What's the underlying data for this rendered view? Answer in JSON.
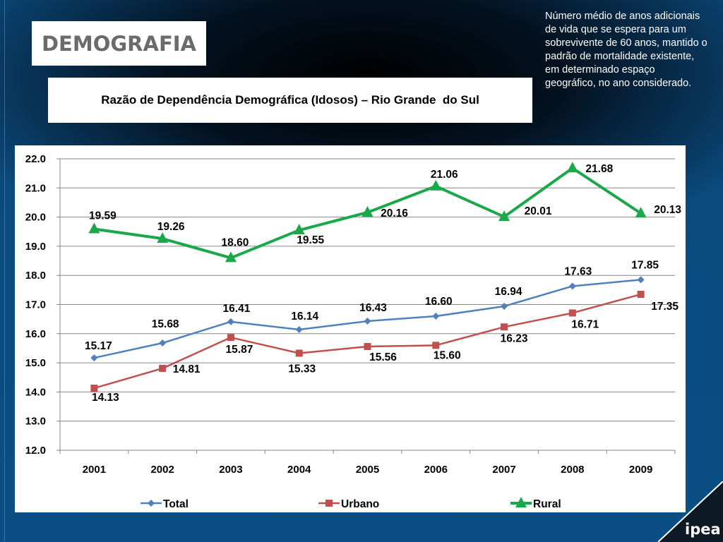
{
  "header": {
    "section_logo": "DEMOGRAFIA",
    "brand": "ipea"
  },
  "note": "Número médio de anos adicionais de vida que se espera para um sobrevivente de 60 anos, mantido o padrão de mortalidade existente, em determinado espaço geográfico, no ano considerado.",
  "colors": {
    "total": "#4f81bd",
    "urbano": "#c0504d",
    "rural": "#1aa84a",
    "grid": "#868686"
  },
  "chart_data": {
    "type": "line",
    "title": "Razão de Dependência Demográfica (Idosos) – Rio Grande  do Sul",
    "xlabel": "",
    "ylabel": "",
    "categories": [
      "2001",
      "2002",
      "2003",
      "2004",
      "2005",
      "2006",
      "2007",
      "2008",
      "2009"
    ],
    "ylim": [
      12.0,
      22.0
    ],
    "yticks": [
      "22.0",
      "21.0",
      "20.0",
      "19.0",
      "18.0",
      "17.0",
      "16.0",
      "15.0",
      "14.0",
      "13.0",
      "12.0"
    ],
    "grid": true,
    "legend": "bottom",
    "series": [
      {
        "name": "Total",
        "marker": "diamond",
        "values": [
          15.17,
          15.68,
          16.41,
          16.14,
          16.43,
          16.6,
          16.94,
          17.63,
          17.85
        ],
        "labels": [
          "15.17",
          "15.68",
          "16.41",
          "16.14",
          "16.43",
          "16.60",
          "16.94",
          "17.63",
          "17.85"
        ]
      },
      {
        "name": "Urbano",
        "marker": "square",
        "values": [
          14.13,
          14.81,
          15.87,
          15.33,
          15.56,
          15.6,
          16.23,
          16.71,
          17.35
        ],
        "labels": [
          "14.13",
          "14.81",
          "15.87",
          "15.33",
          "15.56",
          "15.60",
          "16.23",
          "16.71",
          "17.35"
        ]
      },
      {
        "name": "Rural",
        "marker": "triangle",
        "values": [
          19.59,
          19.26,
          18.6,
          19.55,
          20.16,
          21.06,
          20.01,
          21.68,
          20.13
        ],
        "labels": [
          "19.59",
          "19.26",
          "18.60",
          "19.55",
          "20.16",
          "21.06",
          "20.01",
          "21.68",
          "20.13"
        ]
      }
    ]
  }
}
